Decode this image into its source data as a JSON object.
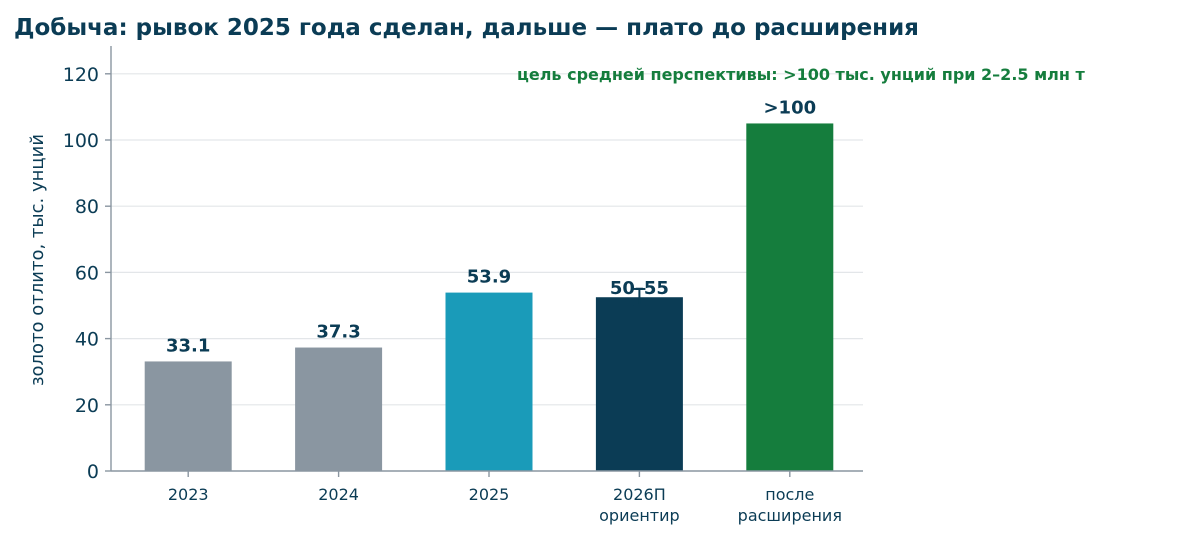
{
  "chart_data": {
    "type": "bar",
    "title": "Добыча: рывок 2025 года сделан, дальше — плато до расширения",
    "xlabel": "",
    "ylabel": "золото отлито, тыс. унций",
    "ylim": [
      0,
      128
    ],
    "yticks": [
      0,
      20,
      40,
      60,
      80,
      100,
      120
    ],
    "grid": true,
    "categories": [
      [
        "2023"
      ],
      [
        "2024"
      ],
      [
        "2025"
      ],
      [
        "2026П",
        "ориентир"
      ],
      [
        "после",
        "расширения"
      ]
    ],
    "values": [
      33.1,
      37.3,
      53.9,
      52.5,
      105
    ],
    "value_labels": [
      "33.1",
      "37.3",
      "53.9",
      "50–55",
      ">100"
    ],
    "error_ranges": [
      null,
      null,
      null,
      [
        50,
        55
      ],
      null
    ],
    "colors": [
      "#8a96a1",
      "#8a96a1",
      "#1a9bb9",
      "#0b3c55",
      "#157d3d"
    ],
    "annotation": {
      "text": "цель средней перспективы: >100 тыс. унций при 2–2.5 млн т",
      "color": "#157d3d"
    }
  }
}
